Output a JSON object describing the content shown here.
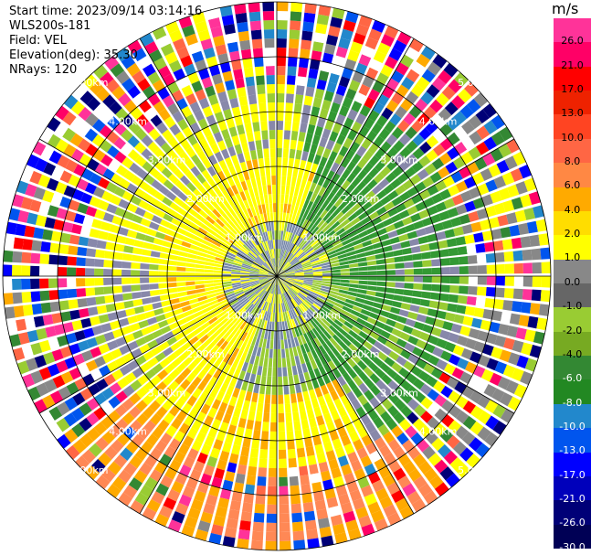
{
  "header": {
    "start_time": "Start time: 2023/09/14 03:14:16",
    "instrument": "WLS200s-181",
    "field": "Field: VEL",
    "elevation": "Elevation(deg): 35.30",
    "nrays": "NRays: 120"
  },
  "colorbar": {
    "unit": "m/s",
    "ticks": [
      "26.0",
      "21.0",
      "17.0",
      "13.0",
      "10.0",
      "8.0",
      "6.0",
      "4.0",
      "2.0",
      "1.0",
      "0.0",
      "-1.0",
      "-2.0",
      "-4.0",
      "-6.0",
      "-8.0",
      "-10.0",
      "-13.0",
      "-17.0",
      "-21.0",
      "-26.0",
      "-30.0"
    ],
    "colors": [
      "#ff3399",
      "#ff0066",
      "#ff0000",
      "#ee2200",
      "#ff4422",
      "#ff6644",
      "#ff8844",
      "#ffaa00",
      "#ffdd00",
      "#ffff00",
      "#888888",
      "#666666",
      "#99cc33",
      "#77aa22",
      "#338833",
      "#228822",
      "#2288cc",
      "#0055ee",
      "#0000ff",
      "#0000bb",
      "#000077",
      "#000055"
    ]
  },
  "rings": {
    "labels": [
      "1.00km",
      "2.00km",
      "3.00km",
      "4.00km",
      "5.00km"
    ]
  }
}
